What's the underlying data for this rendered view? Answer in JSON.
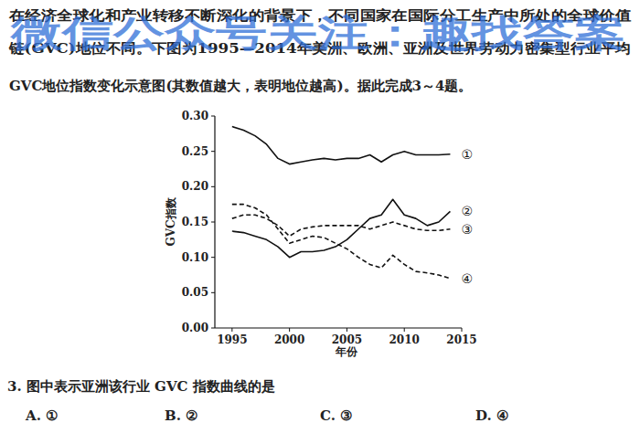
{
  "passage": {
    "lines": [
      "在经济全球化和产业转移不断深化的背景下，不同国家在国际分工生产中所处的全球价值",
      "链(GVC)地位不同。下图为1995—2014年美洲、欧洲、亚洲及世界劳动力密集型行业平均",
      "GVC地位指数变化示意图(其数值越大，表明地位越高)。据此完成3～4题。"
    ]
  },
  "watermark": "微信公众号关注：趣找答案",
  "chart_data": {
    "type": "line",
    "x_label": "年份",
    "y_label": "GVC指数",
    "x": [
      1995,
      1996,
      1997,
      1998,
      1999,
      2000,
      2001,
      2002,
      2003,
      2004,
      2005,
      2006,
      2007,
      2008,
      2009,
      2010,
      2011,
      2012,
      2013,
      2014
    ],
    "series": [
      {
        "name": "①",
        "color": "#111111",
        "line_style": "solid",
        "values": [
          0.285,
          0.28,
          0.272,
          0.26,
          0.24,
          0.232,
          0.235,
          0.238,
          0.24,
          0.238,
          0.24,
          0.24,
          0.245,
          0.235,
          0.245,
          0.25,
          0.245,
          0.245,
          0.245,
          0.246
        ]
      },
      {
        "name": "②",
        "color": "#111111",
        "line_style": "solid",
        "values": [
          0.137,
          0.135,
          0.13,
          0.125,
          0.115,
          0.1,
          0.108,
          0.108,
          0.11,
          0.115,
          0.125,
          0.14,
          0.155,
          0.16,
          0.182,
          0.16,
          0.155,
          0.145,
          0.15,
          0.165
        ]
      },
      {
        "name": "③",
        "color": "#111111",
        "line_style": "dashed",
        "values": [
          0.155,
          0.16,
          0.16,
          0.155,
          0.145,
          0.13,
          0.14,
          0.143,
          0.145,
          0.145,
          0.145,
          0.145,
          0.14,
          0.145,
          0.15,
          0.145,
          0.14,
          0.138,
          0.138,
          0.14
        ]
      },
      {
        "name": "④",
        "color": "#111111",
        "line_style": "dashed",
        "values": [
          0.175,
          0.175,
          0.17,
          0.16,
          0.14,
          0.12,
          0.125,
          0.13,
          0.128,
          0.12,
          0.112,
          0.1,
          0.09,
          0.085,
          0.103,
          0.09,
          0.08,
          0.078,
          0.075,
          0.07
        ]
      }
    ],
    "xlim": [
      1993.5,
      2015
    ],
    "xticks": [
      1995,
      2000,
      2005,
      2010,
      2015
    ],
    "ylim": [
      0,
      0.3
    ],
    "yticks": [
      {
        "value": 0,
        "label": "0.00"
      },
      {
        "value": 0.05,
        "label": "0.05"
      },
      {
        "value": 0.1,
        "label": "0.10"
      },
      {
        "value": 0.15,
        "label": "0.15"
      },
      {
        "value": 0.2,
        "label": "0.20"
      },
      {
        "value": 0.25,
        "label": "0.25"
      },
      {
        "value": 0.3,
        "label": "0.30"
      }
    ],
    "grid": false
  },
  "question": {
    "stem": "3. 图中表示亚洲该行业 GVC 指数曲线的是",
    "options": [
      "A. ①",
      "B. ②",
      "C. ③",
      "D. ④"
    ]
  }
}
